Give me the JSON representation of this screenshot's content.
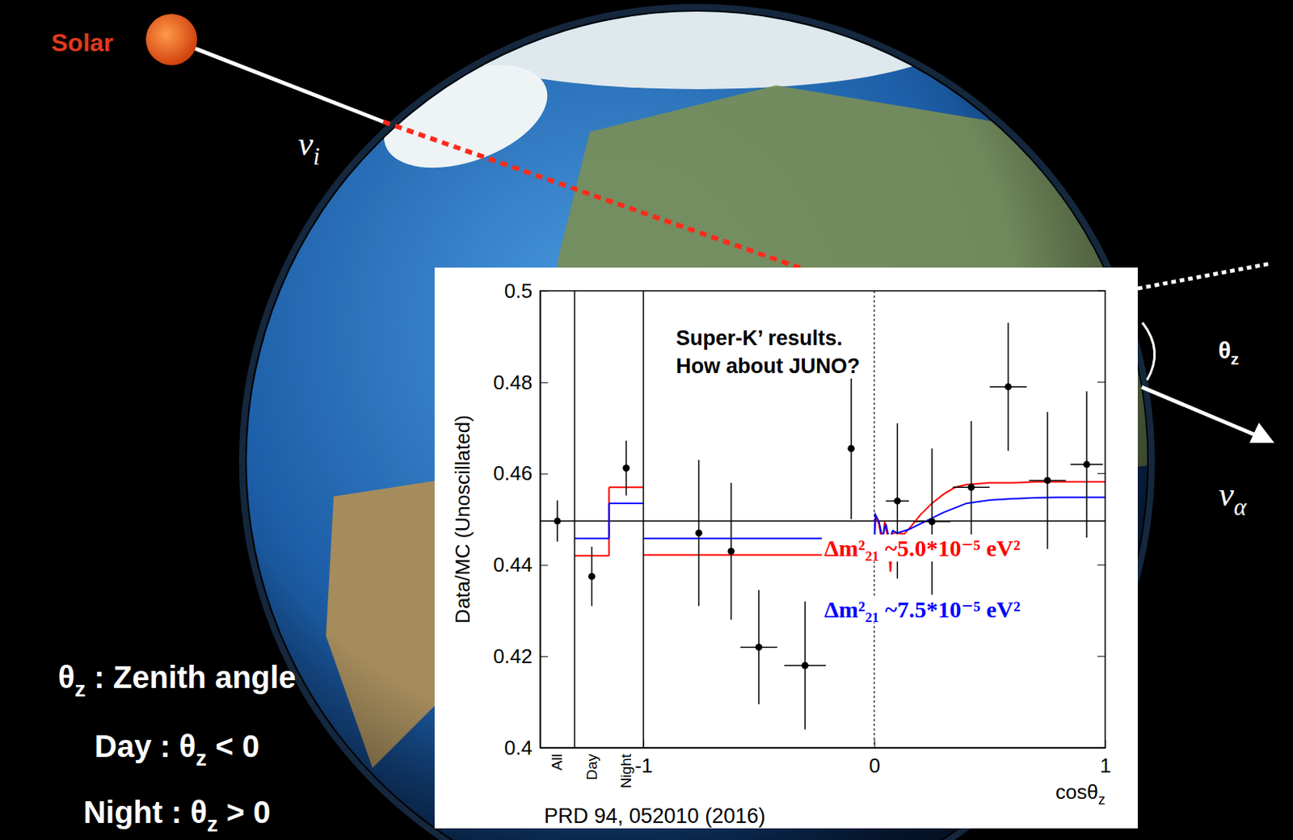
{
  "slide": {
    "sun_label": "Solar",
    "incoming": "νi",
    "outgoing": "να",
    "angle": "θz",
    "definition": "θz : Zenith angle",
    "day": "Day : θz < 0",
    "night": "Night : θz > 0"
  },
  "chart_data": [
    {
      "type": "scatter",
      "ylabel": "Data/MC (Unoscillated)",
      "categories": [
        "All",
        "Day",
        "Night"
      ],
      "values": [
        0.4496,
        0.4375,
        0.4612
      ],
      "errors": [
        0.0045,
        0.0065,
        0.006
      ],
      "color": "#000000",
      "marker": "circle",
      "ylim": [
        0.4,
        0.5
      ],
      "yticks": [
        0.4,
        0.42,
        0.44,
        0.46,
        0.48,
        0.5
      ],
      "reference_line": 0.4496,
      "series": [
        {
          "type": "step",
          "color": "#ff0000",
          "values": [
            null,
            0.442,
            0.457
          ]
        },
        {
          "type": "step",
          "color": "#0000ff",
          "values": [
            null,
            0.4458,
            0.4535
          ]
        }
      ]
    },
    {
      "type": "scatter",
      "xlabel": "cosθz",
      "annotation": [
        "Super-K’ results.",
        "How about JUNO?"
      ],
      "note": "PRD 94, 052010 (2016)",
      "x": [
        -0.76,
        -0.62,
        -0.5,
        -0.3,
        -0.1,
        0.1,
        0.25,
        0.42,
        0.58,
        0.75,
        0.92
      ],
      "values": [
        0.447,
        0.443,
        0.422,
        0.418,
        0.4655,
        0.454,
        0.4495,
        0.457,
        0.479,
        0.4585,
        0.462
      ],
      "errors": [
        0.016,
        0.015,
        0.0125,
        0.014,
        0.0155,
        0.017,
        0.016,
        0.0145,
        0.014,
        0.015,
        0.016
      ],
      "x_errors": [
        null,
        null,
        0.08,
        0.09,
        null,
        0.05,
        0.08,
        0.08,
        0.08,
        0.08,
        0.07
      ],
      "color": "#000000",
      "marker": "circle",
      "xlim": [
        -1,
        1
      ],
      "xticks": [
        -1,
        0,
        1
      ],
      "ylim": [
        0.4,
        0.5
      ],
      "yticks": [
        0.4,
        0.42,
        0.44,
        0.46,
        0.48,
        0.5
      ],
      "tick_labels": "x",
      "vline": 0,
      "series": [
        {
          "name": "Δm²₂₁ ~5.0*10⁻⁵ eV²",
          "type": "line",
          "color": "#ff0000",
          "x": [
            -1,
            0,
            0.005,
            0.02,
            0.035,
            0.045,
            0.06,
            0.07,
            0.08,
            0.1,
            0.13,
            0.16,
            0.2,
            0.25,
            0.3,
            0.35,
            0.4,
            0.5,
            0.6,
            0.7,
            0.8,
            0.9,
            1
          ],
          "values": [
            0.4422,
            0.4422,
            0.4505,
            0.449,
            0.4445,
            0.4495,
            0.4455,
            0.4385,
            0.447,
            0.447,
            0.4468,
            0.4485,
            0.451,
            0.4535,
            0.4555,
            0.457,
            0.4576,
            0.458,
            0.458,
            0.4582,
            0.4582,
            0.4582,
            0.4582
          ]
        },
        {
          "name": "Δm²₂₁ ~7.5*10⁻⁵ eV²",
          "type": "line",
          "color": "#0000ff",
          "x": [
            -1,
            0,
            0.005,
            0.02,
            0.035,
            0.05,
            0.065,
            0.08,
            0.1,
            0.15,
            0.2,
            0.3,
            0.4,
            0.5,
            0.6,
            0.7,
            0.8,
            0.9,
            1
          ],
          "values": [
            0.4458,
            0.4458,
            0.451,
            0.4495,
            0.446,
            0.449,
            0.4455,
            0.4475,
            0.447,
            0.4478,
            0.449,
            0.4515,
            0.4535,
            0.4542,
            0.4545,
            0.4547,
            0.4548,
            0.4548,
            0.4548
          ]
        }
      ]
    }
  ]
}
